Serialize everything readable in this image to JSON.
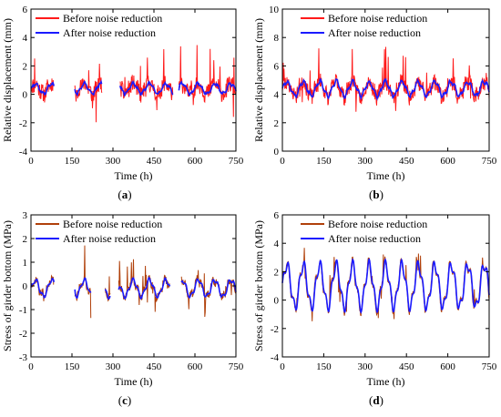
{
  "chart_data": [
    {
      "type": "line",
      "panel": "a",
      "caption_letter": "a",
      "xlabel": "Time (h)",
      "ylabel": "Relative displacement (mm)",
      "xlim": [
        0,
        750
      ],
      "ylim": [
        -4,
        6
      ],
      "xticks": [
        0,
        150,
        300,
        450,
        600,
        750
      ],
      "yticks": [
        -4,
        -2,
        0,
        2,
        4,
        6
      ],
      "legend": "top-left",
      "grid": false,
      "gaps": [
        [
          85,
          160
        ],
        [
          260,
          325
        ],
        [
          520,
          540
        ]
      ],
      "series": [
        {
          "name": "Before noise reduction",
          "color": "#ff1a1a",
          "kind": "raw",
          "base": 0.4,
          "amp": 0.35,
          "noise": 1.2,
          "spike": 2.8,
          "seed": 11
        },
        {
          "name": "After noise reduction",
          "color": "#1a1aff",
          "kind": "smooth",
          "base": 0.4,
          "amp": 0.35,
          "noise": 0.25,
          "spike": 0,
          "seed": 11
        }
      ]
    },
    {
      "type": "line",
      "panel": "b",
      "caption_letter": "b",
      "xlabel": "Time (h)",
      "ylabel": "Relative displacement (mm)",
      "xlim": [
        0,
        750
      ],
      "ylim": [
        0,
        10
      ],
      "xticks": [
        0,
        150,
        300,
        450,
        600,
        750
      ],
      "yticks": [
        0,
        2,
        4,
        6,
        8,
        10
      ],
      "legend": "top-right",
      "grid": false,
      "gaps": [],
      "series": [
        {
          "name": "Before noise reduction",
          "color": "#ff1a1a",
          "kind": "raw",
          "base": 4.4,
          "amp": 0.5,
          "noise": 1.1,
          "spike": 2.8,
          "seed": 23
        },
        {
          "name": "After noise reduction",
          "color": "#1a1aff",
          "kind": "smooth",
          "base": 4.4,
          "amp": 0.5,
          "noise": 0.25,
          "spike": 0,
          "seed": 23
        }
      ]
    },
    {
      "type": "line",
      "panel": "c",
      "caption_letter": "c",
      "xlabel": "Time (h)",
      "ylabel": "Stress of girder bottom (MPa)",
      "xlim": [
        0,
        750
      ],
      "ylim": [
        -3,
        3
      ],
      "xticks": [
        0,
        150,
        300,
        450,
        600,
        750
      ],
      "yticks": [
        -3,
        -2,
        -1,
        0,
        1,
        2,
        3
      ],
      "legend": "top-left",
      "grid": false,
      "gaps": [
        [
          85,
          160
        ],
        [
          220,
          270
        ],
        [
          290,
          320
        ],
        [
          510,
          550
        ]
      ],
      "series": [
        {
          "name": "Before noise reduction",
          "color": "#b0400a",
          "kind": "raw",
          "base": -0.1,
          "amp": 0.35,
          "noise": 0.35,
          "spike": 1.3,
          "seed": 37
        },
        {
          "name": "After noise reduction",
          "color": "#1a1aff",
          "kind": "smooth",
          "base": -0.1,
          "amp": 0.35,
          "noise": 0.08,
          "spike": 0,
          "seed": 37
        }
      ]
    },
    {
      "type": "line",
      "panel": "d",
      "caption_letter": "d",
      "xlabel": "Time (h)",
      "ylabel": "Stress of girder bottom (MPa)",
      "xlim": [
        0,
        750
      ],
      "ylim": [
        -4,
        6
      ],
      "xticks": [
        0,
        150,
        300,
        450,
        600,
        750
      ],
      "yticks": [
        -4,
        -2,
        0,
        2,
        4,
        6
      ],
      "legend": "top-right",
      "grid": false,
      "gaps": [],
      "series": [
        {
          "name": "Before noise reduction",
          "color": "#b0400a",
          "kind": "raw",
          "base": 1.0,
          "amp": 1.5,
          "noise": 0.35,
          "spike": 1.6,
          "seed": 51
        },
        {
          "name": "After noise reduction",
          "color": "#1a1aff",
          "kind": "smooth",
          "base": 1.0,
          "amp": 1.5,
          "noise": 0.05,
          "spike": 0,
          "seed": 51
        }
      ]
    }
  ]
}
